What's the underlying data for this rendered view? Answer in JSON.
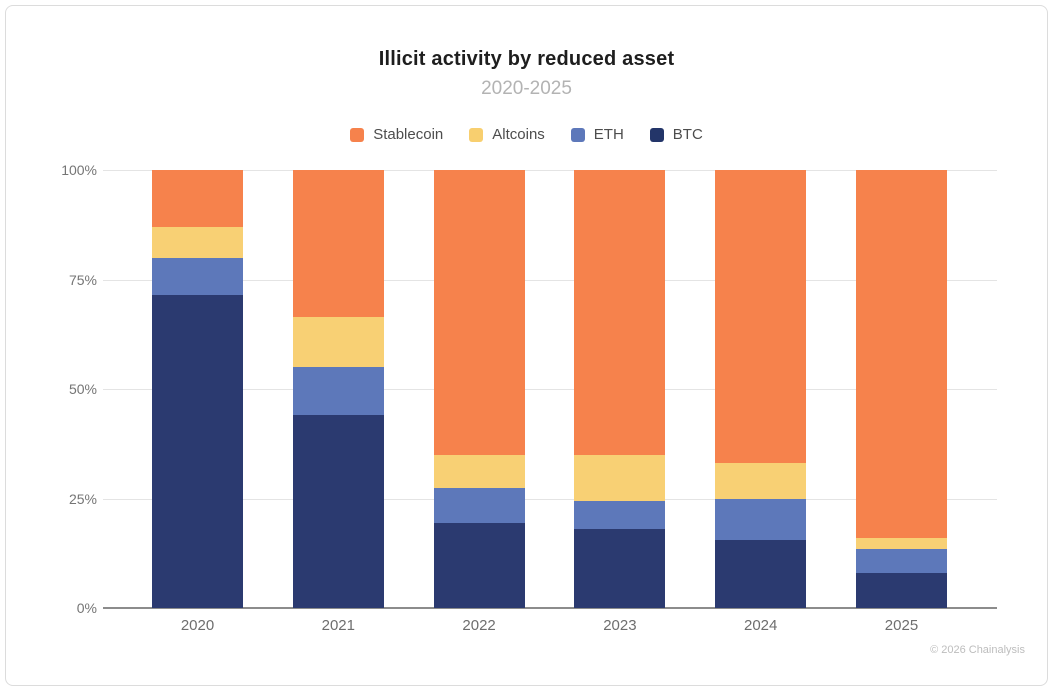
{
  "page": {
    "title": "Illicit activity by reduced asset",
    "subtitle": "2020-2025",
    "copyright": "© 2026 Chainalysis"
  },
  "legend": [
    {
      "label": "Stablecoin",
      "color": "#f6824c"
    },
    {
      "label": "Altcoins",
      "color": "#f8cf6f"
    },
    {
      "label": "ETH",
      "color": "#5d78ba"
    },
    {
      "label": "BTC",
      "color": "#233569"
    }
  ],
  "chart_data": {
    "type": "bar",
    "stacked": true,
    "units": "percent",
    "title": "Illicit activity by reduced asset",
    "subtitle": "2020-2025",
    "categories": [
      "2020",
      "2021",
      "2022",
      "2023",
      "2024",
      "2025"
    ],
    "series": [
      {
        "name": "BTC",
        "color": "#2b3a70",
        "values": [
          71.5,
          44,
          19.5,
          18,
          15.5,
          8
        ]
      },
      {
        "name": "ETH",
        "color": "#5d78ba",
        "values": [
          8.5,
          11,
          8,
          6.5,
          9.5,
          5.5
        ]
      },
      {
        "name": "Altcoins",
        "color": "#f8d074",
        "values": [
          7,
          11.5,
          7.5,
          10.5,
          8,
          2.5
        ]
      },
      {
        "name": "Stablecoin",
        "color": "#f6824c",
        "values": [
          13,
          33.5,
          65,
          65,
          67,
          84
        ]
      }
    ],
    "y_ticks": [
      {
        "label": "100%",
        "value": 100
      },
      {
        "label": "75%",
        "value": 75
      },
      {
        "label": "50%",
        "value": 50
      },
      {
        "label": "25%",
        "value": 25
      },
      {
        "label": "0%",
        "value": 0
      }
    ],
    "ylim": [
      0,
      100
    ],
    "grid": true,
    "legend_position": "top",
    "xlabel": "",
    "ylabel": ""
  }
}
